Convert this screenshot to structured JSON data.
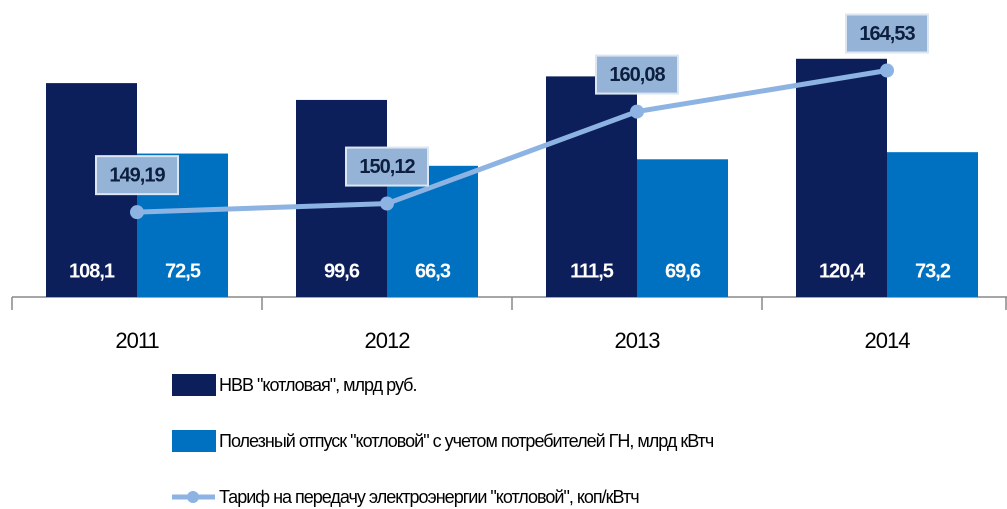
{
  "chart_data": {
    "type": "bar",
    "categories": [
      "2011",
      "2012",
      "2013",
      "2014"
    ],
    "series": [
      {
        "name": "НВВ \"котловая\", млрд руб.",
        "color": "#0c1f5b",
        "values": [
          108.1,
          99.6,
          111.5,
          120.4
        ],
        "value_labels": [
          "108,1",
          "99,6",
          "111,5",
          "120,4"
        ]
      },
      {
        "name": "Полезный отпуск \"котловой\" с учетом потребителей ГН, млрд кВтч",
        "color": "#0070c0",
        "values": [
          72.5,
          66.3,
          69.6,
          73.2
        ],
        "value_labels": [
          "72,5",
          "66,3",
          "69,6",
          "73,2"
        ]
      },
      {
        "name": "Тариф на передачу электроэнергии \"котловой\", коп/кВтч",
        "color": "#8db3e2",
        "type": "line",
        "axis": "y2",
        "values": [
          149.19,
          150.12,
          160.08,
          164.53
        ],
        "value_labels": [
          "149,19",
          "150,12",
          "160,08",
          "164,53"
        ]
      }
    ],
    "ylim": [
      0,
      140
    ],
    "y2lim": [
      140,
      170
    ],
    "legend": "bottom"
  }
}
